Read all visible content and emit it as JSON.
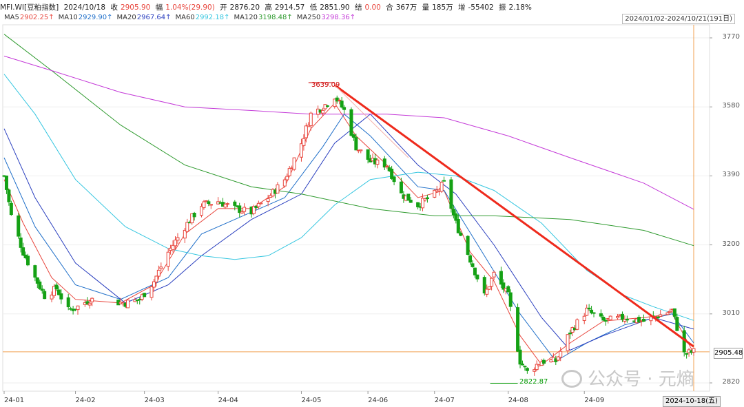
{
  "info": {
    "symbol": "MFI.WI[豆粕指数]",
    "date": "2024/10/18",
    "close_label": "收",
    "close": "2905.90",
    "chg_label": "幅",
    "chg": "1.04%(29.90)",
    "open_label": "开",
    "open": "2876.20",
    "high_label": "高",
    "high": "2914.57",
    "low_label": "低",
    "low": "2851.90",
    "settle_label": "结",
    "settle": "0.00",
    "amount_label": "合",
    "amount": "367万",
    "volume_label": "量",
    "volume": "185万",
    "oi_label": "增",
    "oi": "-55402",
    "amp_label": "振",
    "amp": "2.18%"
  },
  "ma_legend": [
    {
      "label": "MA5",
      "value": "2902.25",
      "color": "#e8453c"
    },
    {
      "label": "MA10",
      "value": "2929.90",
      "color": "#1f6fc9"
    },
    {
      "label": "MA20",
      "value": "2967.64",
      "color": "#2a3fbf"
    },
    {
      "label": "MA60",
      "value": "2992.18",
      "color": "#35c6e0"
    },
    {
      "label": "MA120",
      "value": "3198.48",
      "color": "#2e9a2e"
    },
    {
      "label": "MA250",
      "value": "3298.36",
      "color": "#c43ad8"
    }
  ],
  "range_text": "2024/01/02-2024/10/21(191日)",
  "y_ticks": [
    "3770",
    "3580",
    "3390",
    "3200",
    "3010",
    "2820"
  ],
  "x_ticks": [
    "24-01",
    "24-02",
    "24-03",
    "24-04",
    "24-05",
    "24-06",
    "24-07",
    "24-08",
    "24-09"
  ],
  "current_price": "2905.48",
  "cursor_date": "2024-10-18(五)",
  "high_marker": "3639.09",
  "low_marker": "2822.87",
  "watermark": "公众号 · 元熵",
  "colors": {
    "up": "#e8453c",
    "down": "#14a114",
    "trend": "#ee2a1c",
    "price_line": "#f0a050"
  },
  "chart_data": {
    "type": "candlestick",
    "x_range": [
      "2024-01-02",
      "2024-10-21"
    ],
    "ylim": [
      2790,
      3800
    ],
    "y_ticks": [
      3770,
      3580,
      3390,
      3200,
      3010,
      2820
    ],
    "x_ticks": [
      "24-01",
      "24-02",
      "24-03",
      "24-04",
      "24-05",
      "24-06",
      "24-07",
      "24-08",
      "24-09"
    ],
    "annotations": [
      {
        "type": "high_marker",
        "date": "2024-05-20",
        "value": 3639.09
      },
      {
        "type": "low_marker",
        "date": "2024-08-05",
        "value": 2822.87
      },
      {
        "type": "trendline",
        "from": {
          "date": "2024-05-20",
          "value": 3640
        },
        "to": {
          "date": "2024-10-18",
          "value": 2920
        }
      },
      {
        "type": "hline",
        "value": 2905.48
      }
    ],
    "close_path": [
      {
        "date": "2024-01-02",
        "value": 3390
      },
      {
        "date": "2024-01-05",
        "value": 3280
      },
      {
        "date": "2024-01-10",
        "value": 3180
      },
      {
        "date": "2024-01-15",
        "value": 3110
      },
      {
        "date": "2024-01-19",
        "value": 3060
      },
      {
        "date": "2024-01-24",
        "value": 3080
      },
      {
        "date": "2024-01-29",
        "value": 3020
      },
      {
        "date": "2024-02-02",
        "value": 3030
      },
      {
        "date": "2024-02-07",
        "value": 3050
      },
      {
        "date": "2024-02-22",
        "value": 3040
      },
      {
        "date": "2024-02-28",
        "value": 3050
      },
      {
        "date": "2024-03-05",
        "value": 3100
      },
      {
        "date": "2024-03-11",
        "value": 3180
      },
      {
        "date": "2024-03-18",
        "value": 3250
      },
      {
        "date": "2024-03-25",
        "value": 3310
      },
      {
        "date": "2024-04-01",
        "value": 3320
      },
      {
        "date": "2024-04-08",
        "value": 3300
      },
      {
        "date": "2024-04-15",
        "value": 3290
      },
      {
        "date": "2024-04-22",
        "value": 3330
      },
      {
        "date": "2024-04-29",
        "value": 3380
      },
      {
        "date": "2024-05-06",
        "value": 3480
      },
      {
        "date": "2024-05-10",
        "value": 3560
      },
      {
        "date": "2024-05-15",
        "value": 3580
      },
      {
        "date": "2024-05-20",
        "value": 3610
      },
      {
        "date": "2024-05-24",
        "value": 3570
      },
      {
        "date": "2024-05-29",
        "value": 3470
      },
      {
        "date": "2024-06-04",
        "value": 3430
      },
      {
        "date": "2024-06-11",
        "value": 3420
      },
      {
        "date": "2024-06-17",
        "value": 3340
      },
      {
        "date": "2024-06-24",
        "value": 3310
      },
      {
        "date": "2024-07-01",
        "value": 3340
      },
      {
        "date": "2024-07-05",
        "value": 3370
      },
      {
        "date": "2024-07-10",
        "value": 3260
      },
      {
        "date": "2024-07-16",
        "value": 3160
      },
      {
        "date": "2024-07-22",
        "value": 3060
      },
      {
        "date": "2024-07-26",
        "value": 3120
      },
      {
        "date": "2024-08-01",
        "value": 3060
      },
      {
        "date": "2024-08-06",
        "value": 2880
      },
      {
        "date": "2024-08-09",
        "value": 2850
      },
      {
        "date": "2024-08-15",
        "value": 2880
      },
      {
        "date": "2024-08-21",
        "value": 2880
      },
      {
        "date": "2024-08-27",
        "value": 2960
      },
      {
        "date": "2024-09-03",
        "value": 3020
      },
      {
        "date": "2024-09-10",
        "value": 2990
      },
      {
        "date": "2024-09-19",
        "value": 3000
      },
      {
        "date": "2024-09-27",
        "value": 2990
      },
      {
        "date": "2024-10-09",
        "value": 3020
      },
      {
        "date": "2024-10-14",
        "value": 2900
      },
      {
        "date": "2024-10-18",
        "value": 2906
      }
    ],
    "moving_averages": [
      {
        "name": "MA5",
        "value": 2902.25,
        "points": [
          {
            "date": "2024-01-02",
            "value": 3380
          },
          {
            "date": "2024-01-10",
            "value": 3260
          },
          {
            "date": "2024-01-22",
            "value": 3110
          },
          {
            "date": "2024-02-01",
            "value": 3050
          },
          {
            "date": "2024-02-20",
            "value": 3040
          },
          {
            "date": "2024-03-05",
            "value": 3090
          },
          {
            "date": "2024-03-18",
            "value": 3230
          },
          {
            "date": "2024-04-01",
            "value": 3300
          },
          {
            "date": "2024-04-15",
            "value": 3300
          },
          {
            "date": "2024-04-29",
            "value": 3360
          },
          {
            "date": "2024-05-10",
            "value": 3520
          },
          {
            "date": "2024-05-20",
            "value": 3590
          },
          {
            "date": "2024-05-29",
            "value": 3500
          },
          {
            "date": "2024-06-11",
            "value": 3420
          },
          {
            "date": "2024-06-24",
            "value": 3330
          },
          {
            "date": "2024-07-05",
            "value": 3350
          },
          {
            "date": "2024-07-16",
            "value": 3180
          },
          {
            "date": "2024-07-26",
            "value": 3100
          },
          {
            "date": "2024-08-06",
            "value": 2950
          },
          {
            "date": "2024-08-15",
            "value": 2870
          },
          {
            "date": "2024-08-27",
            "value": 2930
          },
          {
            "date": "2024-09-10",
            "value": 2990
          },
          {
            "date": "2024-09-27",
            "value": 3000
          },
          {
            "date": "2024-10-09",
            "value": 3010
          },
          {
            "date": "2024-10-18",
            "value": 2902
          }
        ]
      },
      {
        "name": "MA10",
        "value": 2929.9,
        "points": [
          {
            "date": "2024-01-02",
            "value": 3440
          },
          {
            "date": "2024-01-15",
            "value": 3250
          },
          {
            "date": "2024-02-01",
            "value": 3090
          },
          {
            "date": "2024-02-20",
            "value": 3050
          },
          {
            "date": "2024-03-11",
            "value": 3110
          },
          {
            "date": "2024-03-25",
            "value": 3230
          },
          {
            "date": "2024-04-15",
            "value": 3290
          },
          {
            "date": "2024-04-29",
            "value": 3330
          },
          {
            "date": "2024-05-15",
            "value": 3470
          },
          {
            "date": "2024-05-24",
            "value": 3560
          },
          {
            "date": "2024-06-04",
            "value": 3500
          },
          {
            "date": "2024-06-24",
            "value": 3360
          },
          {
            "date": "2024-07-05",
            "value": 3350
          },
          {
            "date": "2024-07-22",
            "value": 3170
          },
          {
            "date": "2024-08-06",
            "value": 3010
          },
          {
            "date": "2024-08-21",
            "value": 2880
          },
          {
            "date": "2024-09-03",
            "value": 2930
          },
          {
            "date": "2024-09-19",
            "value": 2980
          },
          {
            "date": "2024-10-09",
            "value": 3010
          },
          {
            "date": "2024-10-18",
            "value": 2930
          }
        ]
      },
      {
        "name": "MA20",
        "value": 2967.64,
        "points": [
          {
            "date": "2024-01-02",
            "value": 3520
          },
          {
            "date": "2024-01-15",
            "value": 3330
          },
          {
            "date": "2024-02-01",
            "value": 3150
          },
          {
            "date": "2024-02-22",
            "value": 3040
          },
          {
            "date": "2024-03-11",
            "value": 3090
          },
          {
            "date": "2024-03-25",
            "value": 3170
          },
          {
            "date": "2024-04-15",
            "value": 3270
          },
          {
            "date": "2024-05-06",
            "value": 3340
          },
          {
            "date": "2024-05-20",
            "value": 3480
          },
          {
            "date": "2024-06-04",
            "value": 3560
          },
          {
            "date": "2024-06-24",
            "value": 3420
          },
          {
            "date": "2024-07-10",
            "value": 3340
          },
          {
            "date": "2024-07-26",
            "value": 3200
          },
          {
            "date": "2024-08-15",
            "value": 3000
          },
          {
            "date": "2024-08-27",
            "value": 2910
          },
          {
            "date": "2024-09-10",
            "value": 2950
          },
          {
            "date": "2024-10-01",
            "value": 3000
          },
          {
            "date": "2024-10-18",
            "value": 2968
          }
        ]
      },
      {
        "name": "MA60",
        "value": 2992.18,
        "points": [
          {
            "date": "2024-01-02",
            "value": 3670
          },
          {
            "date": "2024-01-15",
            "value": 3560
          },
          {
            "date": "2024-02-01",
            "value": 3380
          },
          {
            "date": "2024-02-22",
            "value": 3250
          },
          {
            "date": "2024-03-11",
            "value": 3190
          },
          {
            "date": "2024-03-25",
            "value": 3170
          },
          {
            "date": "2024-04-08",
            "value": 3160
          },
          {
            "date": "2024-04-22",
            "value": 3170
          },
          {
            "date": "2024-05-06",
            "value": 3220
          },
          {
            "date": "2024-05-20",
            "value": 3310
          },
          {
            "date": "2024-06-04",
            "value": 3380
          },
          {
            "date": "2024-06-24",
            "value": 3400
          },
          {
            "date": "2024-07-10",
            "value": 3390
          },
          {
            "date": "2024-07-26",
            "value": 3350
          },
          {
            "date": "2024-08-15",
            "value": 3260
          },
          {
            "date": "2024-09-03",
            "value": 3130
          },
          {
            "date": "2024-09-19",
            "value": 3060
          },
          {
            "date": "2024-10-01",
            "value": 3030
          },
          {
            "date": "2024-10-18",
            "value": 2992
          }
        ]
      },
      {
        "name": "MA120",
        "value": 3198.48,
        "points": [
          {
            "date": "2024-01-02",
            "value": 3780
          },
          {
            "date": "2024-01-22",
            "value": 3680
          },
          {
            "date": "2024-02-20",
            "value": 3530
          },
          {
            "date": "2024-03-18",
            "value": 3420
          },
          {
            "date": "2024-04-15",
            "value": 3360
          },
          {
            "date": "2024-05-06",
            "value": 3340
          },
          {
            "date": "2024-06-04",
            "value": 3300
          },
          {
            "date": "2024-07-01",
            "value": 3280
          },
          {
            "date": "2024-07-26",
            "value": 3280
          },
          {
            "date": "2024-08-27",
            "value": 3270
          },
          {
            "date": "2024-09-27",
            "value": 3240
          },
          {
            "date": "2024-10-18",
            "value": 3198
          }
        ]
      },
      {
        "name": "MA250",
        "value": 3298.36,
        "points": [
          {
            "date": "2024-01-02",
            "value": 3720
          },
          {
            "date": "2024-01-22",
            "value": 3680
          },
          {
            "date": "2024-02-20",
            "value": 3620
          },
          {
            "date": "2024-03-18",
            "value": 3580
          },
          {
            "date": "2024-04-15",
            "value": 3570
          },
          {
            "date": "2024-05-10",
            "value": 3560
          },
          {
            "date": "2024-06-11",
            "value": 3560
          },
          {
            "date": "2024-07-05",
            "value": 3550
          },
          {
            "date": "2024-08-01",
            "value": 3500
          },
          {
            "date": "2024-08-27",
            "value": 3440
          },
          {
            "date": "2024-09-27",
            "value": 3370
          },
          {
            "date": "2024-10-18",
            "value": 3298
          }
        ]
      }
    ]
  }
}
